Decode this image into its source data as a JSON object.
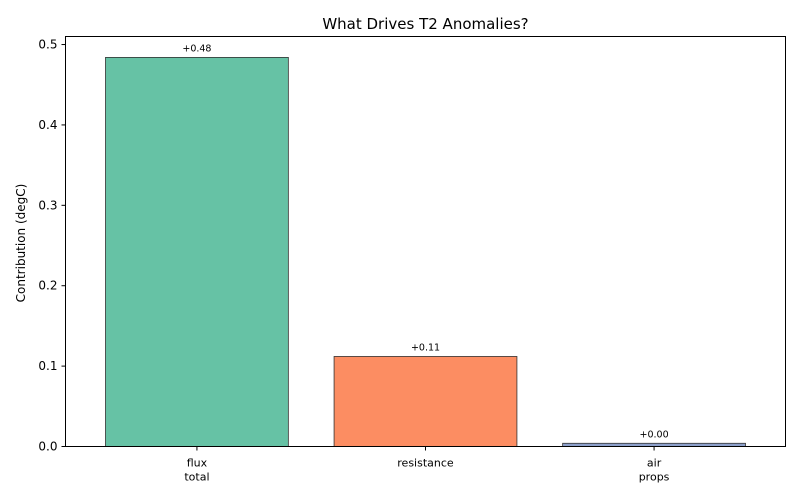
{
  "chart_data": {
    "type": "bar",
    "title": "What Drives T2 Anomalies?",
    "xlabel": "",
    "ylabel": "Contribution (degC)",
    "categories": [
      [
        "flux",
        "total"
      ],
      [
        "resistance"
      ],
      [
        "air",
        "props"
      ]
    ],
    "values": [
      0.484,
      0.112,
      0.004
    ],
    "data_labels": [
      "+0.48",
      "+0.11",
      "+0.00"
    ],
    "colors": [
      "#66c2a5",
      "#fc8d62",
      "#8da0cb"
    ],
    "ylim": [
      0,
      0.51
    ],
    "yticks": [
      0.0,
      0.1,
      0.2,
      0.3,
      0.4,
      0.5
    ],
    "ytick_labels": [
      "0.0",
      "0.1",
      "0.2",
      "0.3",
      "0.4",
      "0.5"
    ],
    "grid": false,
    "legend": "none"
  }
}
